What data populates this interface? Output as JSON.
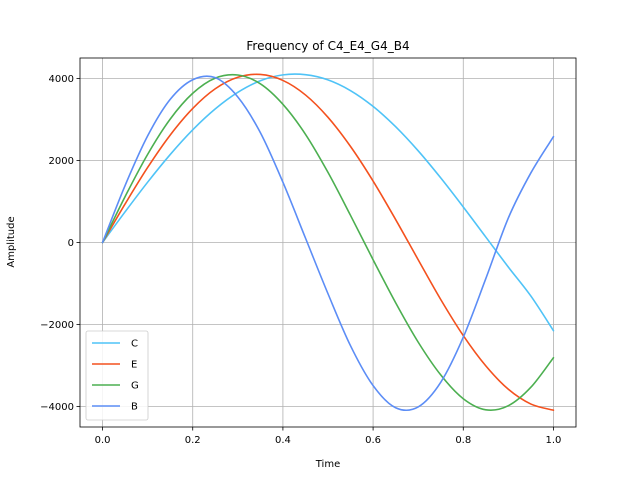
{
  "chart_data": {
    "type": "line",
    "title": "Frequency of C4_E4_G4_B4",
    "xlabel": "Time",
    "ylabel": "Amplitude",
    "xlim": [
      -0.05,
      1.05
    ],
    "ylim": [
      -4500,
      4500
    ],
    "grid": true,
    "legend_position": "lower-left",
    "x_ticks": [
      0.0,
      0.2,
      0.4,
      0.6,
      0.8,
      1.0
    ],
    "x_tick_labels": [
      "0.0",
      "0.2",
      "0.4",
      "0.6",
      "0.8",
      "1.0"
    ],
    "y_ticks": [
      -4000,
      -2000,
      0,
      2000,
      4000
    ],
    "y_tick_labels": [
      "−4000",
      "−2000",
      "0",
      "2000",
      "4000"
    ],
    "x": [
      0.0,
      0.05,
      0.1,
      0.15,
      0.2,
      0.25,
      0.3,
      0.35,
      0.4,
      0.45,
      0.5,
      0.55,
      0.6,
      0.65,
      0.7,
      0.75,
      0.8,
      0.85,
      0.9,
      0.95,
      1.0
    ],
    "series": [
      {
        "name": "C",
        "color": "#4fc3f7",
        "values": [
          0,
          748,
          1471,
          2145,
          2748,
          3258,
          3662,
          3945,
          4088,
          4093,
          3966,
          3704,
          3319,
          2824,
          2236,
          1575,
          866,
          133,
          -600,
          -1307,
          -2150
        ]
      },
      {
        "name": "E",
        "color": "#f4511e",
        "values": [
          0,
          940,
          1830,
          2620,
          3270,
          3750,
          4030,
          4098,
          3953,
          3599,
          3053,
          2341,
          1498,
          560,
          -420,
          -1390,
          -2270,
          -3010,
          -3580,
          -3940,
          -4090
        ]
      },
      {
        "name": "G",
        "color": "#4caf50",
        "values": [
          0,
          1120,
          2150,
          3010,
          3640,
          4010,
          4085,
          3870,
          3370,
          2640,
          1710,
          660,
          -420,
          -1470,
          -2430,
          -3230,
          -3810,
          -4080,
          -3980,
          -3530,
          -2810
        ]
      },
      {
        "name": "B",
        "color": "#5c8df6",
        "values": [
          0,
          1390,
          2600,
          3490,
          3970,
          4020,
          3550,
          2680,
          1470,
          110,
          -1250,
          -2520,
          -3490,
          -4030,
          -4010,
          -3410,
          -2310,
          -880,
          600,
          1700,
          2580
        ]
      }
    ]
  }
}
